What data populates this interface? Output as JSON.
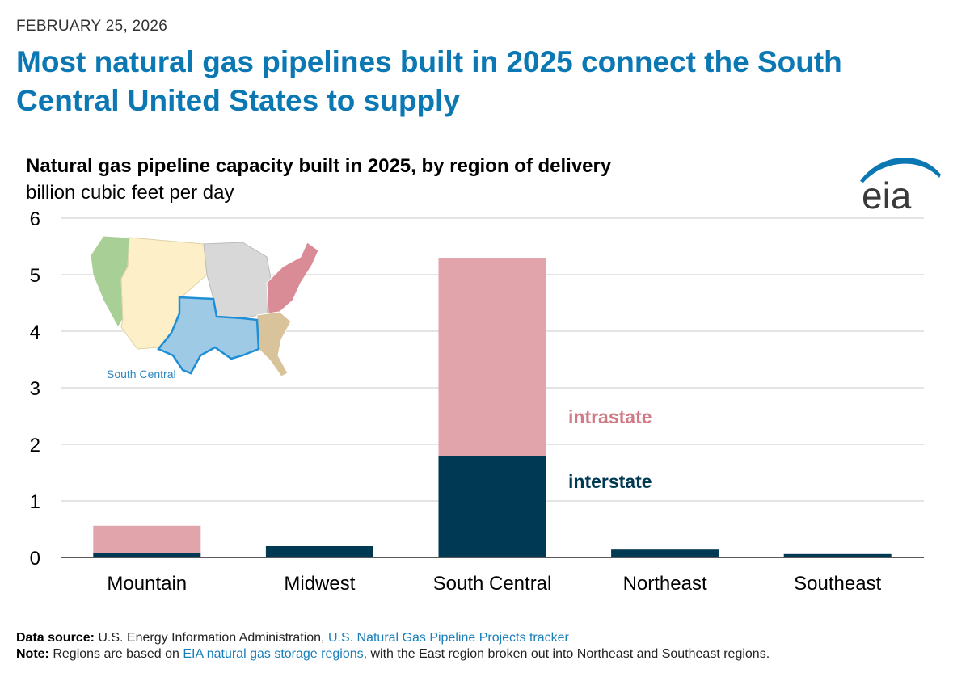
{
  "header": {
    "date": "FEBRUARY 25, 2026",
    "headline": "Most natural gas pipelines built in 2025 connect the South Central United States to supply"
  },
  "logo": {
    "text": "eia"
  },
  "chart_data": {
    "type": "bar",
    "stacked": true,
    "title": "Natural gas pipeline capacity built in 2025, by region of delivery",
    "ylabel": "billion cubic feet per day",
    "xlabel": "",
    "categories": [
      "Mountain",
      "Midwest",
      "South Central",
      "Northeast",
      "Southeast"
    ],
    "series": [
      {
        "name": "interstate",
        "color": "#003953",
        "values": [
          0.08,
          0.2,
          1.8,
          0.14,
          0.06
        ]
      },
      {
        "name": "intrastate",
        "color": "#e0a4aa",
        "values": [
          0.48,
          0.0,
          3.5,
          0.0,
          0.0
        ]
      }
    ],
    "ylim": [
      0,
      6
    ],
    "yticks": [
      0,
      1,
      2,
      3,
      4,
      5,
      6
    ],
    "grid": true,
    "annotations": [
      {
        "text": "intrastate",
        "color": "#d07a86",
        "near": "South Central upper segment"
      },
      {
        "text": "interstate",
        "color": "#003953",
        "near": "South Central lower segment"
      }
    ],
    "inset_map": {
      "label": "South Central",
      "label_color": "#2e86c1",
      "highlight_color": "#9ecae6"
    }
  },
  "footer": {
    "source_label": "Data source:",
    "source_text": "U.S. Energy Information Administration,",
    "source_link": "U.S. Natural Gas Pipeline Projects tracker",
    "note_label": "Note:",
    "note_text_1": "Regions are based on",
    "note_link": "EIA natural gas storage regions",
    "note_text_2": ", with the East region broken out into Northeast and Southeast regions."
  }
}
